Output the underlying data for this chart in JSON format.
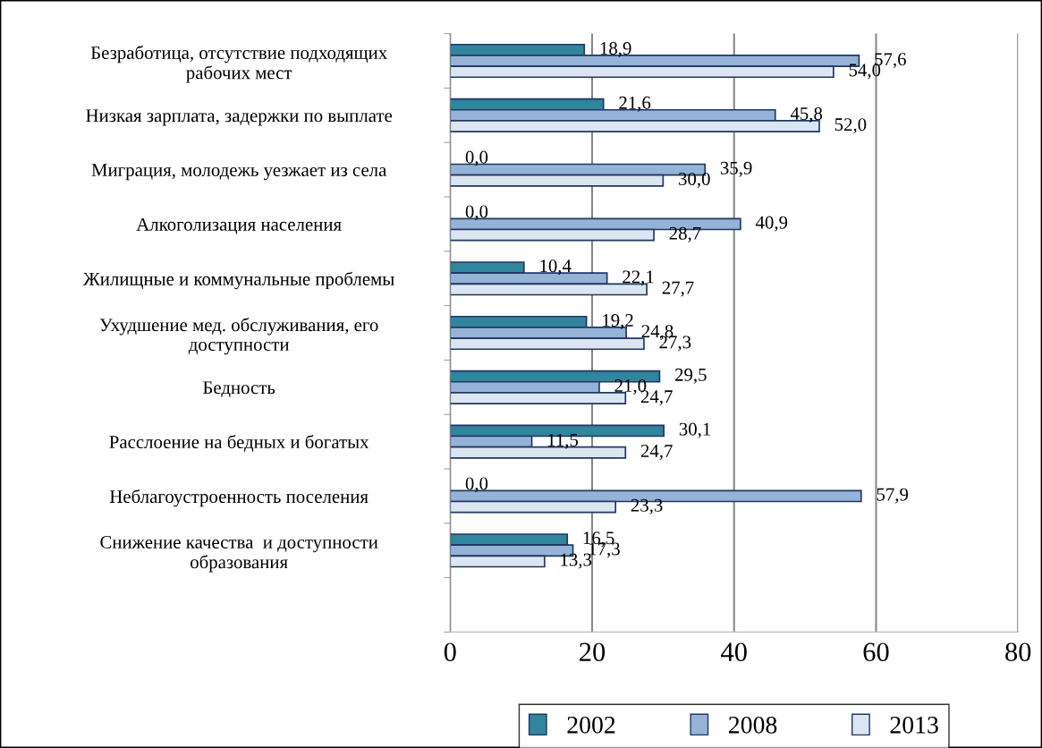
{
  "chart_data": {
    "type": "bar",
    "orientation": "horizontal",
    "categories": [
      "Безработица, отсутствие подходящих\nрабочих мест",
      "Низкая зарплата, задержки по выплате",
      "Миграция, молодежь уезжает из села",
      "Алкоголизация населения",
      "Жилищные и коммунальные проблемы",
      "Ухудшение мед. обслуживания, его\nдоступности",
      "Бедность",
      "Расслоение на бедных и богатых",
      "Неблагоустроенность поселения",
      "Снижение качества  и доступности\nобразования"
    ],
    "series": [
      {
        "name": "2002",
        "color": "#31859c",
        "values": [
          18.9,
          21.6,
          0.0,
          0.0,
          10.4,
          19.2,
          29.5,
          30.1,
          0.0,
          16.5
        ],
        "value_labels": [
          "18,9",
          "21,6",
          "0,0",
          "0,0",
          "10,4",
          "19,2",
          "29,5",
          "30,1",
          "0,0",
          "16,5"
        ]
      },
      {
        "name": "2008",
        "color": "#95b3d7",
        "values": [
          57.6,
          45.8,
          35.9,
          40.9,
          22.1,
          24.8,
          21.0,
          11.5,
          57.9,
          17.3
        ],
        "value_labels": [
          "57,6",
          "45,8",
          "35,9",
          "40,9",
          "22,1",
          "24,8",
          "21,0",
          "11,5",
          "57,9",
          "17,3"
        ]
      },
      {
        "name": "2013",
        "color": "#dce6f2",
        "values": [
          54.0,
          52.0,
          30.0,
          28.7,
          27.7,
          27.3,
          24.7,
          24.7,
          23.3,
          13.3
        ],
        "value_labels": [
          "54,0",
          "52,0",
          "30,0",
          "28,7",
          "27,7",
          "27,3",
          "24,7",
          "24,7",
          "23,3",
          "13,3"
        ]
      }
    ],
    "xlim": [
      0,
      80
    ],
    "xticks": [
      0,
      20,
      40,
      60,
      80
    ],
    "grid": "x",
    "legend": "bottom"
  }
}
